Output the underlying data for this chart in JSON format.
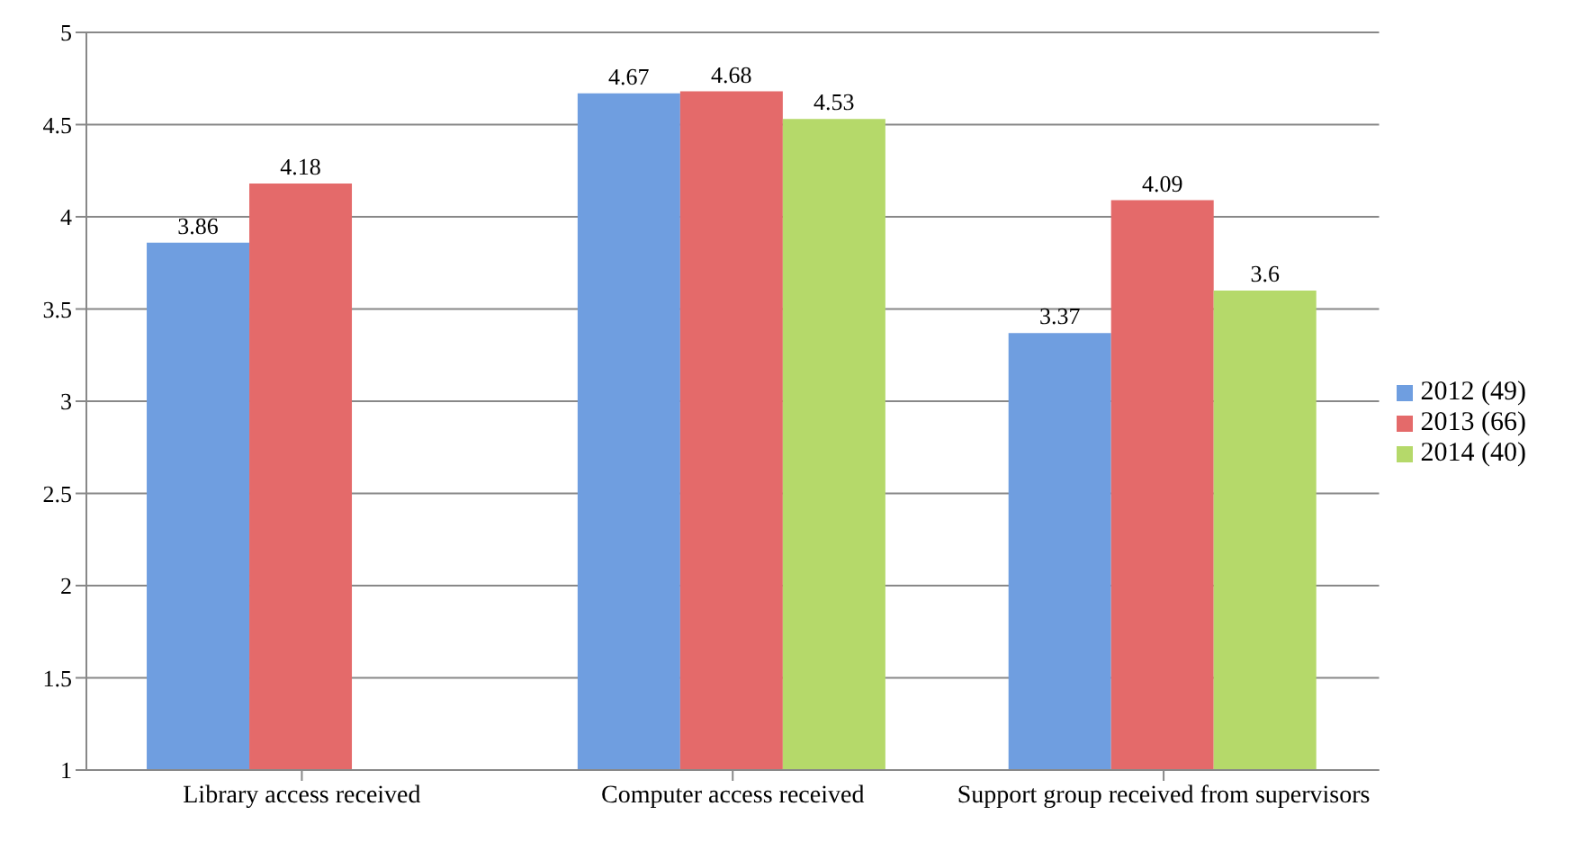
{
  "chart_data": {
    "type": "bar",
    "categories": [
      "Library access received",
      "Computer access received",
      "Support group received from supervisors"
    ],
    "series": [
      {
        "name": "2012 (49)",
        "color": "#6f9ee0",
        "values": [
          3.86,
          4.67,
          3.37
        ]
      },
      {
        "name": "2013 (66)",
        "color": "#e46a6a",
        "values": [
          4.18,
          4.68,
          4.09
        ]
      },
      {
        "name": "2014 (40)",
        "color": "#b5d96a",
        "values": [
          null,
          4.53,
          3.6
        ]
      }
    ],
    "ylim": [
      1,
      5
    ],
    "yticks": [
      1,
      1.5,
      2,
      2.5,
      3,
      3.5,
      4,
      4.5,
      5
    ],
    "grid": "y",
    "legend": "right",
    "data_labels": true
  }
}
